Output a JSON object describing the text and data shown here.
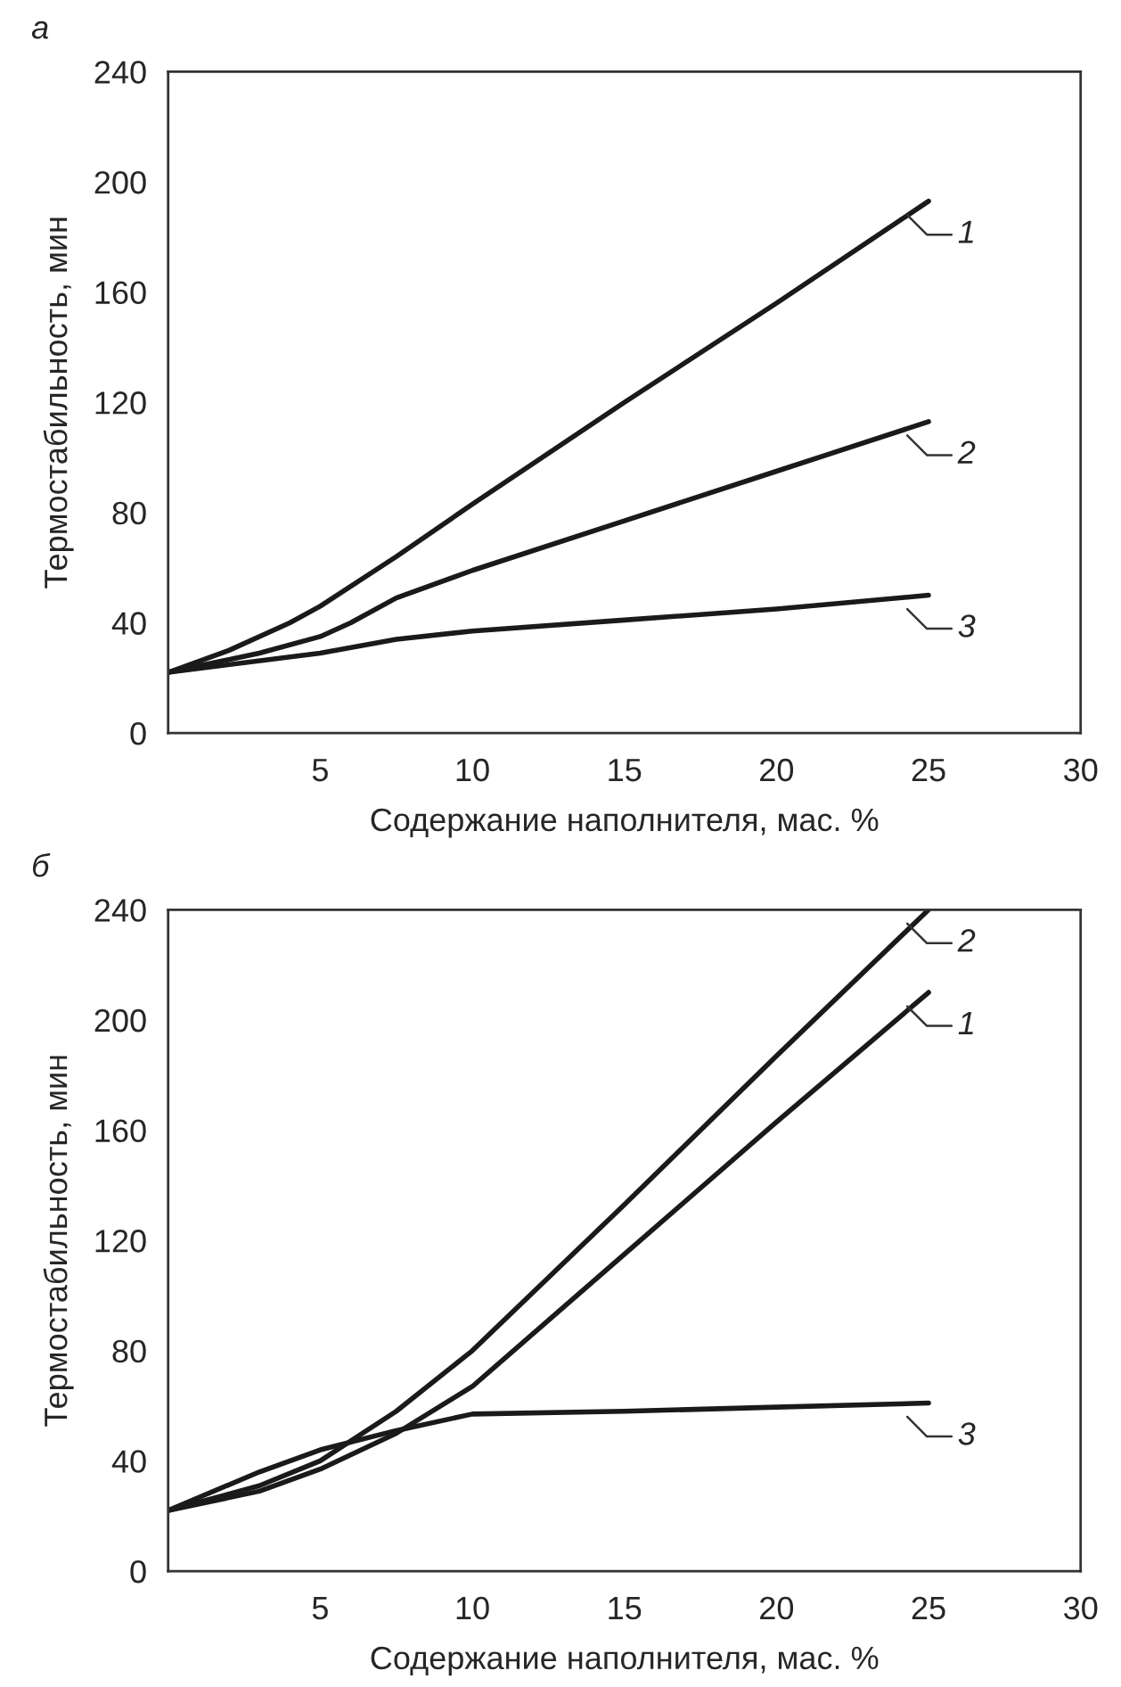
{
  "chart_data": [
    {
      "type": "line",
      "title": "а",
      "xlabel": "Содержание наполнителя, мас. %",
      "ylabel": "Термостабильность, мин",
      "xlim": [
        0,
        30
      ],
      "xticks": [
        5,
        10,
        15,
        20,
        25,
        30
      ],
      "ylim": [
        0,
        240
      ],
      "yticks": [
        0,
        40,
        80,
        120,
        160,
        200,
        240
      ],
      "grid": false,
      "legend": false,
      "marker": "none",
      "line_style": "solid",
      "series": [
        {
          "name": "1",
          "color": "#1a1a1a",
          "x": [
            0,
            2,
            4,
            5,
            7.5,
            10,
            15,
            20,
            25
          ],
          "values": [
            22,
            30,
            40,
            46,
            64,
            83,
            120,
            156,
            193
          ]
        },
        {
          "name": "2",
          "color": "#1a1a1a",
          "x": [
            0,
            3,
            5,
            6,
            7.5,
            10,
            15,
            20,
            25
          ],
          "values": [
            22,
            29,
            35,
            40,
            49,
            59,
            77,
            95,
            113
          ]
        },
        {
          "name": "3",
          "color": "#1a1a1a",
          "x": [
            0,
            5,
            7.5,
            10,
            15,
            20,
            25
          ],
          "values": [
            22,
            29,
            34,
            37,
            41,
            45,
            50
          ]
        }
      ]
    },
    {
      "type": "line",
      "title": "б",
      "xlabel": "Содержание наполнителя, мас. %",
      "ylabel": "Термостабильность, мин",
      "xlim": [
        0,
        30
      ],
      "xticks": [
        5,
        10,
        15,
        20,
        25,
        30
      ],
      "ylim": [
        0,
        240
      ],
      "yticks": [
        0,
        40,
        80,
        120,
        160,
        200,
        240
      ],
      "grid": false,
      "legend": false,
      "marker": "none",
      "line_style": "solid",
      "series": [
        {
          "name": "1",
          "color": "#1a1a1a",
          "x": [
            0,
            3,
            5,
            7.5,
            10,
            15,
            20,
            25
          ],
          "values": [
            22,
            29,
            37,
            50,
            67,
            115,
            163,
            210
          ]
        },
        {
          "name": "2",
          "color": "#1a1a1a",
          "x": [
            0,
            3,
            5,
            7.5,
            10,
            15,
            20,
            25
          ],
          "values": [
            22,
            31,
            40,
            58,
            80,
            133,
            187,
            240
          ]
        },
        {
          "name": "3",
          "color": "#1a1a1a",
          "x": [
            0,
            3,
            5,
            7.5,
            10,
            15,
            20,
            25
          ],
          "values": [
            22,
            36,
            44,
            51,
            57,
            58,
            59.5,
            61
          ]
        }
      ]
    }
  ]
}
